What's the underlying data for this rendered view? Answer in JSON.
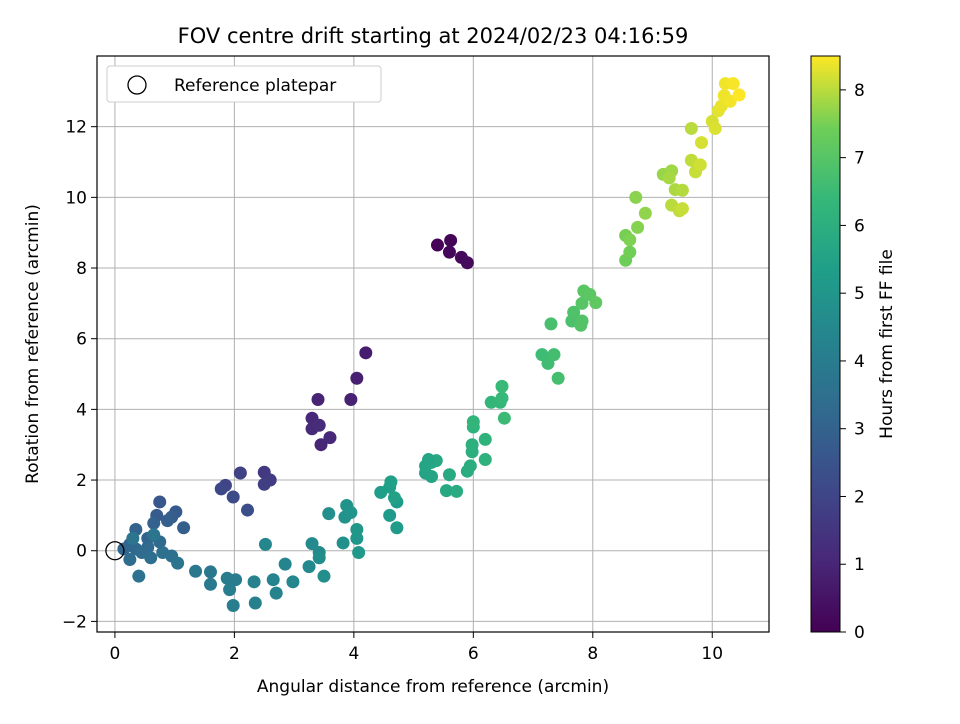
{
  "chart_data": {
    "type": "scatter",
    "title": "FOV centre drift starting at 2024/02/23 04:16:59",
    "xlabel": "Angular distance from reference (arcmin)",
    "ylabel": "Rotation from reference (arcmin)",
    "xlim": [
      -0.3,
      10.95
    ],
    "ylim": [
      -2.3,
      14.0
    ],
    "x_ticks": [
      0,
      2,
      4,
      6,
      8,
      10
    ],
    "y_ticks": [
      -2,
      0,
      2,
      4,
      6,
      8,
      10,
      12
    ],
    "grid": true,
    "legend": {
      "placement": "top-left",
      "entries": [
        "Reference platepar"
      ]
    },
    "reference_point": {
      "x": 0,
      "y": 0
    },
    "colorbar": {
      "label": "Hours from first FF file",
      "range": [
        0,
        8.5
      ],
      "ticks": [
        0,
        1,
        2,
        3,
        4,
        5,
        6,
        7,
        8
      ],
      "colormap": "viridis"
    },
    "points": [
      [
        5.4,
        8.65,
        0.05
      ],
      [
        5.62,
        8.78,
        0.1
      ],
      [
        5.6,
        8.45,
        0.15
      ],
      [
        5.8,
        8.3,
        0.2
      ],
      [
        5.9,
        8.15,
        0.25
      ],
      [
        4.2,
        5.6,
        0.8
      ],
      [
        4.05,
        4.88,
        0.85
      ],
      [
        3.95,
        4.28,
        0.9
      ],
      [
        3.4,
        4.28,
        0.95
      ],
      [
        3.6,
        3.2,
        1.05
      ],
      [
        3.3,
        3.75,
        1.1
      ],
      [
        3.45,
        3.0,
        1.0
      ],
      [
        3.3,
        3.45,
        1.15
      ],
      [
        3.42,
        3.55,
        1.2
      ],
      [
        2.5,
        2.22,
        1.6
      ],
      [
        2.6,
        2.0,
        1.7
      ],
      [
        2.5,
        1.88,
        1.8
      ],
      [
        2.1,
        2.2,
        1.9
      ],
      [
        1.85,
        1.85,
        2.0
      ],
      [
        1.78,
        1.75,
        2.1
      ],
      [
        1.98,
        1.52,
        2.2
      ],
      [
        2.22,
        1.15,
        2.3
      ],
      [
        0.75,
        1.38,
        2.6
      ],
      [
        1.02,
        1.1,
        2.7
      ],
      [
        0.7,
        1.0,
        2.75
      ],
      [
        0.95,
        0.95,
        2.8
      ],
      [
        1.15,
        0.65,
        2.85
      ],
      [
        0.88,
        0.85,
        2.9
      ],
      [
        0.65,
        0.78,
        2.95
      ],
      [
        0.35,
        0.6,
        3.0
      ],
      [
        0.55,
        0.35,
        3.05
      ],
      [
        0.25,
        0.18,
        3.1
      ],
      [
        0.15,
        0.05,
        3.15
      ],
      [
        0.35,
        0.05,
        3.2
      ],
      [
        0.55,
        0.1,
        3.25
      ],
      [
        0.75,
        0.25,
        3.3
      ],
      [
        0.45,
        -0.05,
        3.35
      ],
      [
        0.25,
        -0.25,
        3.4
      ],
      [
        0.6,
        -0.2,
        3.45
      ],
      [
        0.8,
        -0.05,
        3.5
      ],
      [
        0.95,
        -0.15,
        3.55
      ],
      [
        0.4,
        -0.72,
        3.6
      ],
      [
        1.05,
        -0.35,
        3.65
      ],
      [
        0.65,
        0.45,
        3.7
      ],
      [
        0.3,
        0.35,
        3.75
      ],
      [
        1.35,
        -0.58,
        3.8
      ],
      [
        1.6,
        -0.6,
        3.85
      ],
      [
        1.6,
        -0.95,
        3.9
      ],
      [
        1.88,
        -0.78,
        3.95
      ],
      [
        2.02,
        -0.82,
        4.0
      ],
      [
        1.92,
        -1.1,
        4.05
      ],
      [
        1.98,
        -1.55,
        4.1
      ],
      [
        2.35,
        -1.48,
        4.15
      ],
      [
        2.33,
        -0.88,
        4.2
      ],
      [
        2.65,
        -0.82,
        4.25
      ],
      [
        2.7,
        -1.2,
        4.3
      ],
      [
        2.85,
        -0.38,
        4.35
      ],
      [
        2.98,
        -0.88,
        4.4
      ],
      [
        2.52,
        0.18,
        4.45
      ],
      [
        3.25,
        -0.45,
        4.5
      ],
      [
        3.3,
        0.2,
        4.55
      ],
      [
        3.42,
        -0.05,
        4.6
      ],
      [
        3.42,
        -0.2,
        4.65
      ],
      [
        3.5,
        -0.72,
        4.7
      ],
      [
        3.58,
        1.05,
        4.75
      ],
      [
        3.82,
        0.22,
        4.8
      ],
      [
        3.85,
        0.95,
        4.85
      ],
      [
        3.88,
        1.28,
        4.9
      ],
      [
        3.95,
        1.08,
        4.95
      ],
      [
        4.05,
        0.35,
        5.0
      ],
      [
        4.05,
        0.6,
        5.05
      ],
      [
        4.08,
        -0.05,
        5.1
      ],
      [
        4.6,
        1.0,
        5.15
      ],
      [
        4.72,
        0.65,
        5.2
      ],
      [
        4.72,
        1.38,
        5.25
      ],
      [
        4.45,
        1.65,
        5.3
      ],
      [
        4.6,
        1.8,
        5.35
      ],
      [
        4.62,
        1.95,
        5.4
      ],
      [
        4.68,
        1.5,
        5.45
      ],
      [
        5.2,
        2.2,
        5.5
      ],
      [
        5.3,
        2.1,
        5.55
      ],
      [
        5.2,
        2.4,
        5.6
      ],
      [
        5.3,
        2.5,
        5.65
      ],
      [
        5.38,
        2.55,
        5.7
      ],
      [
        5.25,
        2.58,
        5.6
      ],
      [
        5.55,
        1.7,
        5.75
      ],
      [
        5.6,
        2.15,
        5.8
      ],
      [
        5.72,
        1.68,
        5.85
      ],
      [
        5.9,
        2.25,
        5.9
      ],
      [
        5.95,
        2.4,
        5.95
      ],
      [
        5.98,
        2.8,
        6.0
      ],
      [
        5.98,
        3.0,
        6.05
      ],
      [
        6.2,
        2.58,
        6.1
      ],
      [
        6.2,
        3.15,
        6.15
      ],
      [
        6.0,
        3.5,
        6.2
      ],
      [
        6.0,
        3.65,
        6.25
      ],
      [
        6.3,
        4.2,
        6.3
      ],
      [
        6.45,
        4.2,
        6.35
      ],
      [
        6.48,
        4.32,
        6.4
      ],
      [
        6.48,
        4.65,
        6.45
      ],
      [
        6.52,
        3.75,
        6.5
      ],
      [
        7.15,
        5.55,
        6.55
      ],
      [
        7.25,
        5.3,
        6.6
      ],
      [
        7.35,
        5.55,
        6.65
      ],
      [
        7.42,
        4.88,
        6.7
      ],
      [
        7.3,
        6.42,
        6.75
      ],
      [
        7.65,
        6.5,
        6.8
      ],
      [
        7.68,
        6.75,
        6.85
      ],
      [
        7.82,
        6.5,
        6.9
      ],
      [
        7.8,
        6.38,
        6.95
      ],
      [
        7.82,
        7.0,
        7.0
      ],
      [
        7.85,
        7.35,
        7.05
      ],
      [
        7.95,
        7.25,
        7.1
      ],
      [
        8.05,
        7.02,
        7.15
      ],
      [
        8.55,
        8.22,
        7.4
      ],
      [
        8.62,
        8.45,
        7.45
      ],
      [
        8.55,
        8.92,
        7.5
      ],
      [
        8.62,
        8.8,
        7.55
      ],
      [
        8.75,
        9.15,
        7.6
      ],
      [
        8.72,
        10.0,
        7.65
      ],
      [
        8.88,
        9.55,
        7.7
      ],
      [
        9.18,
        10.65,
        7.75
      ],
      [
        9.32,
        10.75,
        7.8
      ],
      [
        9.28,
        10.55,
        7.85
      ],
      [
        9.38,
        10.22,
        7.9
      ],
      [
        9.5,
        10.2,
        7.95
      ],
      [
        9.32,
        9.78,
        8.0
      ],
      [
        9.45,
        9.62,
        8.05
      ],
      [
        9.5,
        9.68,
        8.1
      ],
      [
        9.65,
        11.95,
        8.0
      ],
      [
        9.65,
        11.05,
        8.05
      ],
      [
        9.72,
        10.72,
        8.1
      ],
      [
        9.8,
        10.92,
        8.15
      ],
      [
        9.82,
        11.55,
        8.2
      ],
      [
        10.0,
        12.15,
        8.2
      ],
      [
        10.05,
        11.95,
        8.25
      ],
      [
        10.1,
        12.45,
        8.3
      ],
      [
        10.15,
        12.58,
        8.35
      ],
      [
        10.2,
        12.88,
        8.38
      ],
      [
        10.22,
        13.22,
        8.4
      ],
      [
        10.3,
        12.72,
        8.42
      ],
      [
        10.35,
        13.22,
        8.45
      ],
      [
        10.45,
        12.9,
        8.5
      ]
    ]
  }
}
